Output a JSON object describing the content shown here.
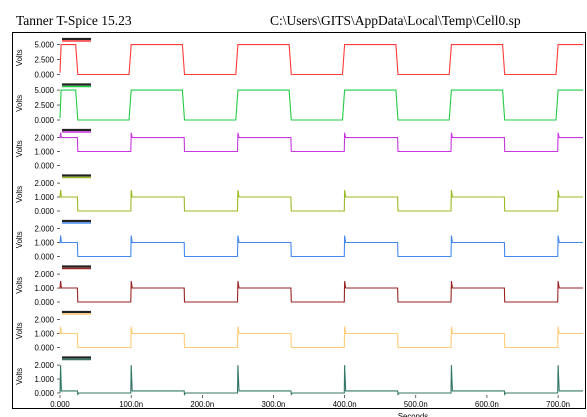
{
  "window": {
    "app_title": "Tanner T-Spice 15.23",
    "file_path": "C:\\Users\\GITS\\AppData\\Local\\Temp\\Cell0.sp"
  },
  "chart_data": {
    "type": "line",
    "xlabel": "Seconds",
    "xlim": [
      0,
      735
    ],
    "x_unit": "ns",
    "x_ticks": [
      "0.000",
      "100.0n",
      "200.0n",
      "300.0n",
      "400.0n",
      "500.0n",
      "600.0n",
      "700.0n"
    ],
    "x_tick_values": [
      0,
      100,
      200,
      300,
      400,
      500,
      600,
      700
    ],
    "panels": [
      {
        "color": "#ff3b3b",
        "ylabel": "Volts",
        "ylim": [
          0,
          5.6
        ],
        "y_ticks": [
          "5.000",
          "2.500",
          "0.000"
        ],
        "y_tick_values": [
          5,
          2.5,
          0
        ],
        "high": 5.0,
        "low": 0.0,
        "starts_high": false,
        "spike_up": 0,
        "spike_down": 0,
        "lead": 0.3
      },
      {
        "color": "#22cc44",
        "ylabel": "Volts",
        "ylim": [
          0,
          5.6
        ],
        "y_ticks": [
          "5.000",
          "2.500",
          "0.000"
        ],
        "y_tick_values": [
          5,
          2.5,
          0
        ],
        "high": 5.0,
        "low": 0.0,
        "starts_high": false,
        "spike_up": 0,
        "spike_down": 0,
        "lead": 0.3
      },
      {
        "color": "#c837e0",
        "ylabel": "Volts",
        "ylim": [
          0,
          2.4
        ],
        "y_ticks": [
          "2.000",
          "1.000",
          "0.000"
        ],
        "y_tick_values": [
          2,
          1,
          0
        ],
        "high": 2.0,
        "low": 1.0,
        "starts_high": true,
        "spike_up": 0.35,
        "spike_down": 0.0,
        "lead": 1.0
      },
      {
        "color": "#99bb22",
        "ylabel": "Volts",
        "ylim": [
          0,
          2.4
        ],
        "y_ticks": [
          "2.000",
          "1.000",
          "0.000"
        ],
        "y_tick_values": [
          2,
          1,
          0
        ],
        "high": 1.0,
        "low": 0.0,
        "starts_high": true,
        "spike_up": 0.5,
        "spike_down": 0.0,
        "lead": 1.0
      },
      {
        "color": "#4488ee",
        "ylabel": "Volts",
        "ylim": [
          0,
          2.4
        ],
        "y_ticks": [
          "2.000",
          "1.000",
          "0.000"
        ],
        "y_tick_values": [
          2,
          1,
          0
        ],
        "high": 1.0,
        "low": 0.0,
        "starts_high": true,
        "spike_up": 0.5,
        "spike_down": 0.0,
        "lead": 1.0
      },
      {
        "color": "#992222",
        "ylabel": "Volts",
        "ylim": [
          0,
          2.4
        ],
        "y_ticks": [
          "2.000",
          "1.000",
          "0.000"
        ],
        "y_tick_values": [
          2,
          1,
          0
        ],
        "high": 1.0,
        "low": 0.0,
        "starts_high": true,
        "spike_up": 0.5,
        "spike_down": 0.0,
        "lead": 1.0
      },
      {
        "color": "#ffcc77",
        "ylabel": "Volts",
        "ylim": [
          0,
          2.4
        ],
        "y_ticks": [
          "2.000",
          "1.000",
          "0.000"
        ],
        "y_tick_values": [
          2,
          1,
          0
        ],
        "high": 1.0,
        "low": 0.0,
        "starts_high": true,
        "spike_up": 0.5,
        "spike_down": 0.0,
        "lead": 1.0
      },
      {
        "color": "#337766",
        "ylabel": "Volts",
        "ylim": [
          0,
          2.4
        ],
        "y_ticks": [
          "2.000",
          "1.000",
          "0.000"
        ],
        "y_tick_values": [
          2,
          1,
          0
        ],
        "high": 0.15,
        "low": 0.0,
        "starts_high": true,
        "spike_up": 1.85,
        "spike_down": -0.1,
        "lead": 0.0
      }
    ],
    "period_ns": 150,
    "first_rise_ns": 100,
    "pulse_width_ns": 75,
    "edge_ns": 3
  }
}
